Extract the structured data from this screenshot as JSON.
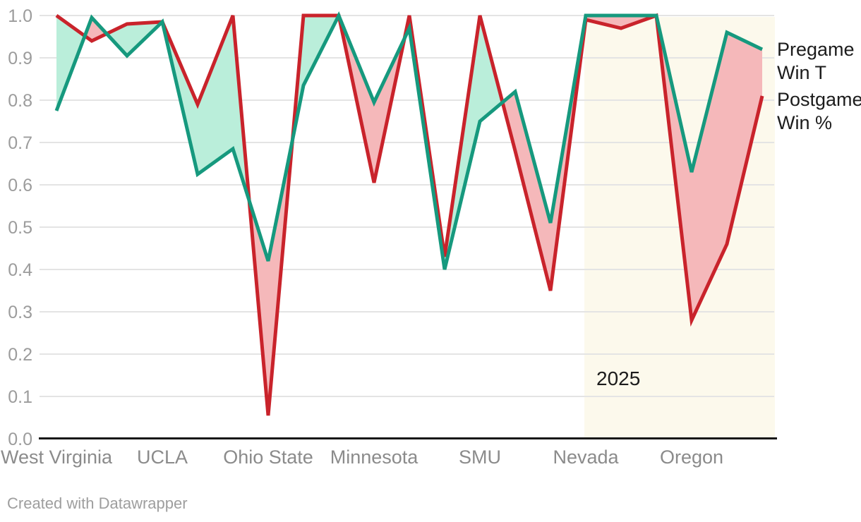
{
  "footer": {
    "credit": "Created with Datawrapper"
  },
  "legend": [
    {
      "series": "pregame",
      "lines": [
        "Pregame",
        "Win T"
      ],
      "color": "#16997e"
    },
    {
      "series": "postgame",
      "lines": [
        "Postgame",
        "Win %"
      ],
      "color": "#c9232b"
    }
  ],
  "chart_data": {
    "type": "line",
    "title": "",
    "xlabel": "",
    "ylabel": "",
    "n_points": 21,
    "x_labels_every": 3,
    "categories": [
      "West Virginia",
      "UCLA",
      "Ohio State",
      "Minnesota",
      "SMU",
      "Nevada",
      "Oregon"
    ],
    "series": [
      {
        "name": "Pregame Win T",
        "color": "#16997e",
        "values": [
          0.775,
          0.995,
          0.905,
          0.985,
          0.625,
          0.685,
          0.42,
          0.835,
          1.0,
          0.795,
          0.97,
          0.4,
          0.75,
          0.82,
          0.51,
          1.0,
          1.0,
          1.0,
          0.63,
          0.96,
          0.92
        ]
      },
      {
        "name": "Postgame Win %",
        "color": "#c9232b",
        "values": [
          1.0,
          0.94,
          0.98,
          0.985,
          0.79,
          1.0,
          0.055,
          1.0,
          1.0,
          0.605,
          1.0,
          0.43,
          1.0,
          0.68,
          0.35,
          0.99,
          0.97,
          1.0,
          0.28,
          0.46,
          0.81
        ]
      }
    ],
    "fills": {
      "postgame_above": "#baeeda",
      "pregame_above": "#f5b8ba"
    },
    "highlight": {
      "label": "2025",
      "color": "#fcf9ec",
      "from_index": 14.96,
      "to_index": 20.36
    },
    "ylim": [
      0,
      1
    ],
    "yticks": [
      0,
      0.1,
      0.2,
      0.3,
      0.4,
      0.5,
      0.6,
      0.7,
      0.8,
      0.9,
      1.0
    ],
    "grid": true,
    "legend_position": "right",
    "colors": {
      "gridline": "#e4e4e4",
      "axis": "#171717",
      "ytick_text": "#9c9c9c",
      "xtick_text": "#8b8b8b",
      "annotation_text": "#1c1c1c"
    }
  }
}
